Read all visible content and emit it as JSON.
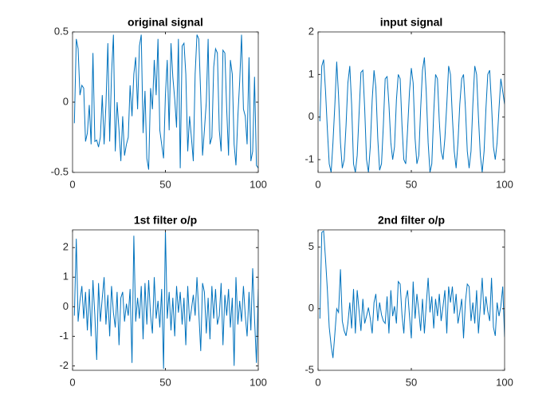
{
  "chart_data": [
    {
      "type": "line",
      "title": "original signal",
      "color": "#0072bd",
      "x": [
        1,
        2,
        3,
        4,
        5,
        6,
        7,
        8,
        9,
        10,
        11,
        12,
        13,
        14,
        15,
        16,
        17,
        18,
        19,
        20,
        21,
        22,
        23,
        24,
        25,
        26,
        27,
        28,
        29,
        30,
        31,
        32,
        33,
        34,
        35,
        36,
        37,
        38,
        39,
        40,
        41,
        42,
        43,
        44,
        45,
        46,
        47,
        48,
        49,
        50,
        51,
        52,
        53,
        54,
        55,
        56,
        57,
        58,
        59,
        60,
        61,
        62,
        63,
        64,
        65,
        66,
        67,
        68,
        69,
        70,
        71,
        72,
        73,
        74,
        75,
        76,
        77,
        78,
        79,
        80,
        81,
        82,
        83,
        84,
        85,
        86,
        87,
        88,
        89,
        90,
        91,
        92,
        93,
        94,
        95,
        96,
        97,
        98,
        99,
        100
      ],
      "values": [
        -0.15,
        0.45,
        0.38,
        0.05,
        0.12,
        0.1,
        -0.28,
        -0.22,
        -0.02,
        -0.3,
        0.35,
        -0.28,
        -0.27,
        -0.32,
        -0.25,
        0.05,
        -0.3,
        -0.02,
        0.42,
        -0.28,
        0.2,
        0.48,
        -0.35,
        0.0,
        -0.2,
        -0.42,
        -0.1,
        -0.38,
        -0.3,
        -0.25,
        0.12,
        -0.1,
        0.2,
        0.32,
        -0.05,
        0.4,
        0.48,
        -0.22,
        0.08,
        -0.4,
        -0.48,
        0.1,
        -0.05,
        0.3,
        0.05,
        0.45,
        -0.2,
        -0.3,
        -0.4,
        0.05,
        0.3,
        -0.2,
        0.42,
        0.18,
        0.02,
        -0.18,
        0.45,
        -0.47,
        0.4,
        0.42,
        0.2,
        -0.35,
        -0.1,
        -0.25,
        -0.42,
        0.2,
        0.48,
        0.45,
        0.05,
        -0.38,
        -0.2,
        0.0,
        0.45,
        -0.3,
        -0.25,
        0.25,
        0.38,
        0.35,
        -0.2,
        -0.35,
        0.37,
        0.35,
        -0.05,
        -0.38,
        0.3,
        0.2,
        -0.3,
        -0.45,
        -0.1,
        0.15,
        0.48,
        -0.05,
        -0.1,
        -0.3,
        0.32,
        -0.42,
        -0.35,
        0.18,
        -0.45,
        -0.47
      ],
      "xlim": [
        0,
        100
      ],
      "xticks": [
        0,
        50,
        100
      ],
      "ylim": [
        -0.5,
        0.5
      ],
      "yticks": [
        -0.5,
        0,
        0.5
      ]
    },
    {
      "type": "line",
      "title": "input signal",
      "color": "#0072bd",
      "x": [
        1,
        2,
        3,
        4,
        5,
        6,
        7,
        8,
        9,
        10,
        11,
        12,
        13,
        14,
        15,
        16,
        17,
        18,
        19,
        20,
        21,
        22,
        23,
        24,
        25,
        26,
        27,
        28,
        29,
        30,
        31,
        32,
        33,
        34,
        35,
        36,
        37,
        38,
        39,
        40,
        41,
        42,
        43,
        44,
        45,
        46,
        47,
        48,
        49,
        50,
        51,
        52,
        53,
        54,
        55,
        56,
        57,
        58,
        59,
        60,
        61,
        62,
        63,
        64,
        65,
        66,
        67,
        68,
        69,
        70,
        71,
        72,
        73,
        74,
        75,
        76,
        77,
        78,
        79,
        80,
        81,
        82,
        83,
        84,
        85,
        86,
        87,
        88,
        89,
        90,
        91,
        92,
        93,
        94,
        95,
        96,
        97,
        98,
        99,
        100
      ],
      "values": [
        -0.1,
        1.2,
        1.35,
        0.6,
        -0.3,
        -1.1,
        -1.3,
        -0.6,
        0.3,
        1.3,
        0.5,
        -0.6,
        -1.2,
        -1.0,
        -0.2,
        0.8,
        1.2,
        0.3,
        -1.1,
        -1.3,
        -0.9,
        0.1,
        1.05,
        1.1,
        0.2,
        -1.0,
        -1.3,
        -0.7,
        0.4,
        1.1,
        0.7,
        -0.5,
        -1.25,
        -1.1,
        -0.2,
        0.9,
        0.95,
        0.3,
        -0.6,
        -1.0,
        -0.7,
        0.4,
        1.0,
        0.9,
        -0.2,
        -1.0,
        -1.1,
        -0.3,
        0.6,
        1.15,
        0.8,
        -0.5,
        -1.1,
        -0.9,
        0.2,
        1.1,
        1.4,
        0.6,
        -0.6,
        -1.3,
        -1.1,
        0.1,
        1.0,
        0.9,
        -0.1,
        -0.8,
        -1.0,
        -0.5,
        0.3,
        1.2,
        1.0,
        0.0,
        -0.8,
        -1.2,
        -0.6,
        0.3,
        0.9,
        1.0,
        0.2,
        -0.8,
        -1.2,
        -0.8,
        0.3,
        1.2,
        1.0,
        0.0,
        -0.9,
        -1.3,
        -0.8,
        0.2,
        1.0,
        1.1,
        0.3,
        -0.7,
        -1.0,
        -0.6,
        0.2,
        0.9,
        0.6,
        0.3
      ],
      "xlim": [
        0,
        100
      ],
      "xticks": [
        0,
        50,
        100
      ],
      "ylim": [
        -1.3,
        2
      ],
      "yticks": [
        -1,
        0,
        1,
        2
      ]
    },
    {
      "type": "line",
      "title": "1st filter o/p",
      "color": "#0072bd",
      "x": [
        1,
        2,
        3,
        4,
        5,
        6,
        7,
        8,
        9,
        10,
        11,
        12,
        13,
        14,
        15,
        16,
        17,
        18,
        19,
        20,
        21,
        22,
        23,
        24,
        25,
        26,
        27,
        28,
        29,
        30,
        31,
        32,
        33,
        34,
        35,
        36,
        37,
        38,
        39,
        40,
        41,
        42,
        43,
        44,
        45,
        46,
        47,
        48,
        49,
        50,
        51,
        52,
        53,
        54,
        55,
        56,
        57,
        58,
        59,
        60,
        61,
        62,
        63,
        64,
        65,
        66,
        67,
        68,
        69,
        70,
        71,
        72,
        73,
        74,
        75,
        76,
        77,
        78,
        79,
        80,
        81,
        82,
        83,
        84,
        85,
        86,
        87,
        88,
        89,
        90,
        91,
        92,
        93,
        94,
        95,
        96,
        97,
        98,
        99,
        100
      ],
      "values": [
        -0.3,
        2.3,
        -0.5,
        0.2,
        0.7,
        -0.4,
        0.5,
        -0.8,
        0.6,
        -1.0,
        0.9,
        -0.3,
        -1.8,
        0.8,
        -0.5,
        0.3,
        1.0,
        -0.6,
        0.4,
        -1.0,
        0.7,
        -0.2,
        -0.7,
        0.5,
        -1.3,
        0.3,
        0.5,
        -0.5,
        0.1,
        -0.3,
        0.6,
        -1.9,
        2.4,
        -0.5,
        0.3,
        -0.4,
        0.7,
        -1.1,
        0.8,
        -0.6,
        0.9,
        -0.3,
        -0.9,
        1.0,
        -0.4,
        0.2,
        -0.7,
        0.6,
        -2.1,
        2.6,
        -0.4,
        0.5,
        -0.8,
        0.3,
        -1.0,
        0.7,
        -0.2,
        0.5,
        -0.6,
        0.3,
        -1.3,
        0.7,
        -0.5,
        -0.1,
        0.4,
        -0.3,
        1.0,
        -0.2,
        -1.5,
        0.8,
        0.5,
        -0.9,
        0.3,
        -1.1,
        0.7,
        -0.4,
        0.6,
        -0.6,
        -0.3,
        0.8,
        -1.3,
        0.4,
        -0.3,
        0.6,
        -0.7,
        0.3,
        -2.0,
        1.0,
        -0.6,
        0.2,
        -0.5,
        0.7,
        -0.3,
        -1.0,
        0.5,
        -0.8,
        1.3,
        -0.4,
        -1.9,
        0.6
      ],
      "xlim": [
        0,
        100
      ],
      "xticks": [
        0,
        50,
        100
      ],
      "ylim": [
        -2.15,
        2.6
      ],
      "yticks": [
        -2,
        -1,
        0,
        1,
        2
      ]
    },
    {
      "type": "line",
      "title": "2nd filter o/p",
      "color": "#0072bd",
      "x": [
        1,
        2,
        3,
        4,
        5,
        6,
        7,
        8,
        9,
        10,
        11,
        12,
        13,
        14,
        15,
        16,
        17,
        18,
        19,
        20,
        21,
        22,
        23,
        24,
        25,
        26,
        27,
        28,
        29,
        30,
        31,
        32,
        33,
        34,
        35,
        36,
        37,
        38,
        39,
        40,
        41,
        42,
        43,
        44,
        45,
        46,
        47,
        48,
        49,
        50,
        51,
        52,
        53,
        54,
        55,
        56,
        57,
        58,
        59,
        60,
        61,
        62,
        63,
        64,
        65,
        66,
        67,
        68,
        69,
        70,
        71,
        72,
        73,
        74,
        75,
        76,
        77,
        78,
        79,
        80,
        81,
        82,
        83,
        84,
        85,
        86,
        87,
        88,
        89,
        90,
        91,
        92,
        93,
        94,
        95,
        96,
        97,
        98,
        99,
        100
      ],
      "values": [
        -0.8,
        6.2,
        6.3,
        4.0,
        1.5,
        -1.5,
        -3.0,
        -4.0,
        -2.0,
        0.0,
        -0.3,
        3.2,
        -1.0,
        -1.8,
        -2.2,
        -1.2,
        0.5,
        -1.6,
        1.6,
        -2.0,
        1.5,
        -0.2,
        -1.8,
        0.8,
        -1.2,
        -0.6,
        0.1,
        -0.8,
        -2.0,
        0.5,
        1.2,
        -1.0,
        0.5,
        -0.5,
        -1.0,
        -1.2,
        1.0,
        -2.0,
        1.5,
        -0.6,
        0.2,
        -1.2,
        2.2,
        2.0,
        -0.5,
        -2.0,
        0.8,
        1.5,
        -0.6,
        -2.4,
        2.2,
        -0.8,
        1.2,
        -0.2,
        -1.8,
        0.8,
        -2.0,
        0.3,
        2.5,
        -0.3,
        1.0,
        -1.6,
        0.8,
        -0.6,
        1.2,
        -1.0,
        0.2,
        1.5,
        -2.0,
        1.8,
        0.5,
        1.8,
        -0.4,
        1.2,
        -1.2,
        -0.3,
        0.8,
        -2.4,
        0.6,
        2.0,
        1.8,
        -1.0,
        0.5,
        -1.2,
        1.5,
        -2.0,
        0.2,
        2.5,
        -0.5,
        1.0,
        -0.2,
        -1.0,
        2.5,
        -1.5,
        -2.2,
        0.5,
        -0.6,
        0.2,
        1.8,
        -2.3
      ],
      "xlim": [
        0,
        100
      ],
      "xticks": [
        0,
        50,
        100
      ],
      "ylim": [
        -5,
        6.4
      ],
      "yticks": [
        -5,
        0,
        5
      ]
    }
  ]
}
